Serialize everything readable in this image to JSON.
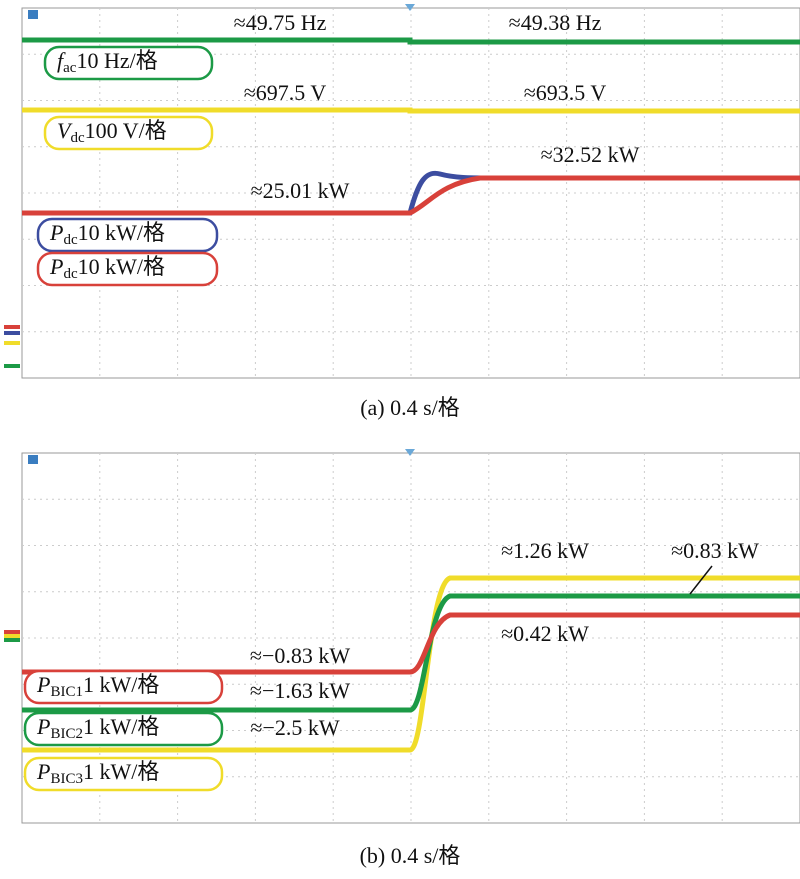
{
  "panels": [
    {
      "annotations": [
        "≈49.75 Hz",
        "≈49.38 Hz",
        "≈697.5 V",
        "≈693.5 V",
        "≈32.52 kW",
        "≈25.01 kW"
      ],
      "legend": [
        {
          "symbol": "f",
          "subscript": "ac",
          "scale": "10 Hz/格"
        },
        {
          "symbol": "V",
          "subscript": "dc",
          "scale": "100 V/格"
        },
        {
          "symbol": "P",
          "subscript": "dc",
          "scale": "10 kW/格"
        },
        {
          "symbol": "P",
          "subscript": "dc",
          "scale": "10 kW/格"
        }
      ],
      "caption": "(a) 0.4 s/格"
    },
    {
      "annotations": [
        "≈1.26 kW",
        "≈0.83 kW",
        "≈0.42 kW",
        "≈−0.83 kW",
        "≈−1.63 kW",
        "≈−2.5 kW"
      ],
      "legend": [
        {
          "symbol": "P",
          "subscript": "BIC1",
          "scale": "1 kW/格"
        },
        {
          "symbol": "P",
          "subscript": "BIC2",
          "scale": "1 kW/格"
        },
        {
          "symbol": "P",
          "subscript": "BIC3",
          "scale": "1 kW/格"
        }
      ],
      "caption": "(b) 0.4 s/格"
    }
  ]
}
